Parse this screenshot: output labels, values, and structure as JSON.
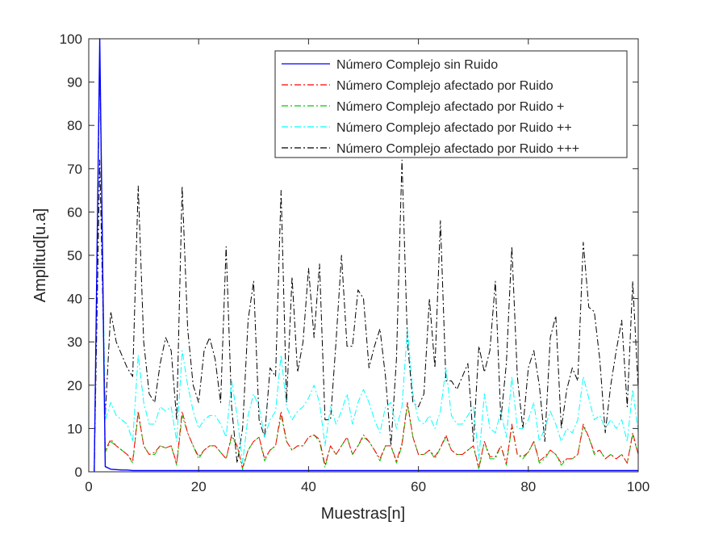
{
  "chart_data": {
    "type": "line",
    "xlabel": "Muestras[n]",
    "ylabel": "Amplitud[u.a]",
    "xlim": [
      0,
      100
    ],
    "ylim": [
      0,
      100
    ],
    "xticks": [
      0,
      20,
      40,
      60,
      80,
      100
    ],
    "yticks": [
      0,
      10,
      20,
      30,
      40,
      50,
      60,
      70,
      80,
      90,
      100
    ],
    "grid": false,
    "legend_position": "top-right",
    "x": [
      1,
      2,
      3,
      4,
      5,
      6,
      7,
      8,
      9,
      10,
      11,
      12,
      13,
      14,
      15,
      16,
      17,
      18,
      19,
      20,
      21,
      22,
      23,
      24,
      25,
      26,
      27,
      28,
      29,
      30,
      31,
      32,
      33,
      34,
      35,
      36,
      37,
      38,
      39,
      40,
      41,
      42,
      43,
      44,
      45,
      46,
      47,
      48,
      49,
      50,
      51,
      52,
      53,
      54,
      55,
      56,
      57,
      58,
      59,
      60,
      61,
      62,
      63,
      64,
      65,
      66,
      67,
      68,
      69,
      70,
      71,
      72,
      73,
      74,
      75,
      76,
      77,
      78,
      79,
      80,
      81,
      82,
      83,
      84,
      85,
      86,
      87,
      88,
      89,
      90,
      91,
      92,
      93,
      94,
      95,
      96,
      97,
      98,
      99,
      100
    ],
    "series": [
      {
        "name": "Número Complejo sin Ruido",
        "color": "#0000ff",
        "dash": "solid",
        "values": [
          0,
          100,
          1.2,
          0.6,
          0.5,
          0.4,
          0.4,
          0.3,
          0.3,
          0.3,
          0.3,
          0.3,
          0.3,
          0.3,
          0.3,
          0.3,
          0.3,
          0.3,
          0.3,
          0.3,
          0.3,
          0.3,
          0.3,
          0.3,
          0.3,
          0.3,
          0.3,
          0.3,
          0.3,
          0.3,
          0.3,
          0.3,
          0.3,
          0.3,
          0.3,
          0.3,
          0.3,
          0.3,
          0.3,
          0.3,
          0.3,
          0.3,
          0.3,
          0.3,
          0.3,
          0.3,
          0.3,
          0.3,
          0.3,
          0.3,
          0.3,
          0.3,
          0.3,
          0.3,
          0.3,
          0.3,
          0.3,
          0.3,
          0.3,
          0.3,
          0.3,
          0.3,
          0.3,
          0.3,
          0.3,
          0.3,
          0.3,
          0.3,
          0.3,
          0.3,
          0.3,
          0.3,
          0.3,
          0.3,
          0.3,
          0.3,
          0.3,
          0.3,
          0.3,
          0.3,
          0.3,
          0.3,
          0.3,
          0.3,
          0.3,
          0.3,
          0.3,
          0.3,
          0.3,
          0.3,
          0.3,
          0.3,
          0.3,
          0.3,
          0.3,
          0.3,
          0.3,
          0.3,
          0.3,
          0.3
        ]
      },
      {
        "name": "Número Complejo afectado por Ruido",
        "color": "#ff0000",
        "dash": "dashdot",
        "values": [
          0,
          96,
          5,
          7.5,
          6,
          5,
          4,
          2.5,
          14,
          6,
          4,
          4.5,
          6,
          5.5,
          6,
          2,
          14,
          9,
          6,
          3.5,
          5,
          6,
          6,
          4.5,
          3,
          8.5,
          6,
          1,
          5,
          7,
          8,
          3,
          5,
          6,
          14,
          7,
          5,
          6,
          6,
          8,
          8.5,
          7.5,
          1.5,
          6,
          4,
          6,
          8,
          4,
          6,
          8.5,
          7,
          5,
          3,
          6,
          6,
          2.5,
          6.5,
          16,
          8,
          4,
          4,
          5,
          3.5,
          5.5,
          8.5,
          5,
          4,
          4,
          5,
          6,
          1,
          7,
          3.5,
          3.5,
          6,
          2,
          11,
          4,
          3.5,
          4.5,
          7,
          2.5,
          3.5,
          5,
          4,
          2,
          3,
          3,
          4,
          11,
          8,
          4.5,
          5,
          3,
          4,
          3,
          4,
          2,
          9,
          4
        ]
      },
      {
        "name": "Número Complejo afectado por Ruido +",
        "color": "#00cc00",
        "dash": "dashdot",
        "values": [
          0,
          95,
          4.5,
          7,
          6,
          5,
          4,
          2,
          13.5,
          6,
          4,
          4,
          6,
          5.5,
          6,
          1.5,
          13,
          9,
          6,
          3,
          5,
          6,
          6,
          4.5,
          3,
          8,
          6,
          0.5,
          5,
          7,
          8,
          2.5,
          5,
          6,
          13,
          7,
          5,
          6,
          6,
          8,
          8.5,
          7,
          1,
          6,
          4,
          6,
          8,
          4,
          6,
          8,
          7,
          5,
          2.5,
          6,
          6,
          2,
          6,
          15.5,
          8,
          4,
          4,
          5,
          3,
          5.5,
          8,
          5,
          4,
          4,
          5,
          6,
          0.5,
          7,
          3,
          3,
          6,
          1.5,
          10.5,
          4,
          3,
          4.5,
          7,
          2,
          3,
          5,
          4,
          1.5,
          3,
          3,
          4,
          10.5,
          8,
          4,
          5,
          3,
          4,
          3,
          4,
          2,
          8.5,
          4
        ]
      },
      {
        "name": "Número Complejo afectado por Ruido ++",
        "color": "#00ffff",
        "dash": "dashdot",
        "values": [
          0,
          94,
          12,
          16,
          13,
          12,
          11,
          7,
          27,
          16,
          11,
          11,
          15,
          14,
          15,
          7,
          28,
          20,
          14,
          10,
          12,
          13,
          13,
          11,
          8,
          21,
          13,
          2,
          13,
          18,
          15,
          8,
          12,
          14,
          27,
          15,
          12,
          14,
          15,
          17,
          20,
          16,
          6,
          15,
          11,
          14,
          18,
          11,
          16,
          19,
          16,
          12,
          9,
          15,
          16,
          10,
          15,
          33,
          18,
          12,
          11,
          13,
          10,
          14,
          24,
          13,
          11,
          11,
          13,
          15,
          3,
          18,
          10,
          9,
          14,
          8,
          22,
          10,
          10,
          12,
          16,
          7,
          10,
          14,
          11,
          7,
          10,
          9,
          12,
          22,
          17,
          12,
          13,
          10,
          12,
          10,
          12,
          7,
          19,
          9
        ]
      },
      {
        "name": "Número Complejo afectado por Ruido +++",
        "color": "#000000",
        "dash": "dashdot",
        "values": [
          0,
          72,
          13,
          37,
          30,
          27,
          24,
          22,
          66,
          30,
          18,
          16,
          25,
          31,
          28,
          12,
          66,
          33,
          20,
          16,
          28,
          31,
          26,
          16,
          52,
          15,
          2,
          10,
          35,
          44,
          12,
          8,
          24,
          22,
          65,
          16,
          45,
          23,
          30,
          47,
          31,
          48,
          12,
          12,
          30,
          50,
          29,
          29,
          42,
          40,
          24,
          29,
          33,
          22,
          6,
          26,
          72,
          30,
          16,
          15,
          18,
          40,
          24,
          58,
          21,
          21,
          19,
          22,
          25,
          7,
          29,
          23,
          28,
          44,
          12,
          25,
          52,
          22,
          10,
          24,
          28,
          20,
          7,
          31,
          36,
          10,
          19,
          24,
          21,
          53,
          38,
          37,
          26,
          9,
          20,
          28,
          35,
          15,
          44,
          19
        ]
      }
    ]
  }
}
